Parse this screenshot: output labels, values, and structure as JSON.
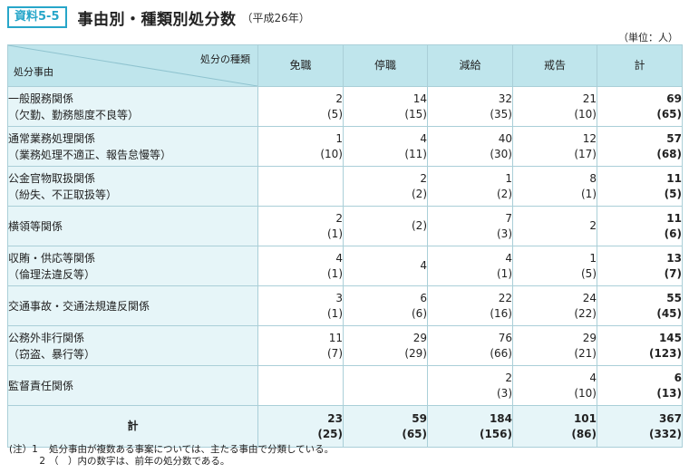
{
  "header": {
    "badge": "資料5-5",
    "title": "事由別・種類別処分数",
    "subtitle": "（平成26年）"
  },
  "unit": "（単位：人）",
  "table": {
    "corner_top": "処分の種類",
    "corner_bottom": "処分事由",
    "columns": [
      "免職",
      "停職",
      "減給",
      "戒告",
      "計"
    ],
    "rows": [
      {
        "line1": "一般服務関係",
        "line2": "（欠勤、勤務態度不良等）",
        "cells": [
          {
            "v": "2",
            "p": "(5)"
          },
          {
            "v": "14",
            "p": "(15)"
          },
          {
            "v": "32",
            "p": "(35)"
          },
          {
            "v": "21",
            "p": "(10)"
          },
          {
            "v": "69",
            "p": "(65)"
          }
        ]
      },
      {
        "line1": "通常業務処理関係",
        "line2": "（業務処理不適正、報告怠慢等）",
        "cells": [
          {
            "v": "1",
            "p": "(10)"
          },
          {
            "v": "4",
            "p": "(11)"
          },
          {
            "v": "40",
            "p": "(30)"
          },
          {
            "v": "12",
            "p": "(17)"
          },
          {
            "v": "57",
            "p": "(68)"
          }
        ]
      },
      {
        "line1": "公金官物取扱関係",
        "line2": "（紛失、不正取扱等）",
        "cells": [
          {
            "v": "",
            "p": ""
          },
          {
            "v": "2",
            "p": "(2)"
          },
          {
            "v": "1",
            "p": "(2)"
          },
          {
            "v": "8",
            "p": "(1)"
          },
          {
            "v": "11",
            "p": "(5)"
          }
        ]
      },
      {
        "line1": "横領等関係",
        "line2": "",
        "cells": [
          {
            "v": "2",
            "p": "(1)"
          },
          {
            "v": "",
            "p": "(2)"
          },
          {
            "v": "7",
            "p": "(3)"
          },
          {
            "v": "2",
            "p": ""
          },
          {
            "v": "11",
            "p": "(6)"
          }
        ]
      },
      {
        "line1": "収賄・供応等関係",
        "line2": "（倫理法違反等）",
        "cells": [
          {
            "v": "4",
            "p": "(1)"
          },
          {
            "v": "4",
            "p": ""
          },
          {
            "v": "4",
            "p": "(1)"
          },
          {
            "v": "1",
            "p": "(5)"
          },
          {
            "v": "13",
            "p": "(7)"
          }
        ]
      },
      {
        "line1": "交通事故・交通法規違反関係",
        "line2": "",
        "cells": [
          {
            "v": "3",
            "p": "(1)"
          },
          {
            "v": "6",
            "p": "(6)"
          },
          {
            "v": "22",
            "p": "(16)"
          },
          {
            "v": "24",
            "p": "(22)"
          },
          {
            "v": "55",
            "p": "(45)"
          }
        ]
      },
      {
        "line1": "公務外非行関係",
        "line2": "（窃盗、暴行等）",
        "cells": [
          {
            "v": "11",
            "p": "(7)"
          },
          {
            "v": "29",
            "p": "(29)"
          },
          {
            "v": "76",
            "p": "(66)"
          },
          {
            "v": "29",
            "p": "(21)"
          },
          {
            "v": "145",
            "p": "(123)"
          }
        ]
      },
      {
        "line1": "監督責任関係",
        "line2": "",
        "cells": [
          {
            "v": "",
            "p": ""
          },
          {
            "v": "",
            "p": ""
          },
          {
            "v": "2",
            "p": "(3)"
          },
          {
            "v": "4",
            "p": "(10)"
          },
          {
            "v": "6",
            "p": "(13)"
          }
        ]
      }
    ],
    "total": {
      "label": "計",
      "cells": [
        {
          "v": "23",
          "p": "(25)"
        },
        {
          "v": "59",
          "p": "(65)"
        },
        {
          "v": "184",
          "p": "(156)"
        },
        {
          "v": "101",
          "p": "(86)"
        },
        {
          "v": "367",
          "p": "(332)"
        }
      ]
    }
  },
  "notes": [
    {
      "lead": "(注）1",
      "text": "処分事由が複数ある事案については、主たる事由で分類している。"
    },
    {
      "lead": "2",
      "text": "（　）内の数字は、前年の処分数である。"
    }
  ]
}
